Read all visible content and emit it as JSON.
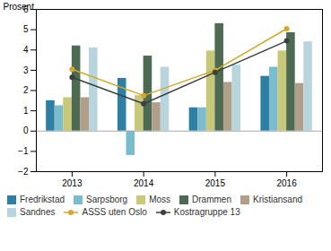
{
  "chart_data": {
    "type": "bar",
    "categories": [
      "2013",
      "2014",
      "2015",
      "2016"
    ],
    "series": [
      {
        "name": "Fredrikstad",
        "type": "bar",
        "color": "#2e7fa3",
        "values": [
          1.5,
          2.6,
          1.15,
          2.7
        ]
      },
      {
        "name": "Sarpsborg",
        "type": "bar",
        "color": "#7bbccc",
        "values": [
          1.25,
          -1.2,
          1.15,
          3.15
        ]
      },
      {
        "name": "Moss",
        "type": "bar",
        "color": "#c8c87a",
        "values": [
          1.65,
          1.75,
          3.95,
          3.95
        ]
      },
      {
        "name": "Drammen",
        "type": "bar",
        "color": "#4d6b52",
        "values": [
          4.2,
          3.7,
          5.3,
          4.85
        ]
      },
      {
        "name": "Kristiansand",
        "type": "bar",
        "color": "#b0a08a",
        "values": [
          1.65,
          1.4,
          2.4,
          2.35
        ]
      },
      {
        "name": "Sandnes",
        "type": "bar",
        "color": "#b8d4dd",
        "values": [
          4.1,
          3.15,
          3.25,
          4.4
        ]
      },
      {
        "name": "ASSS uten Oslo",
        "type": "line",
        "color": "#d4a82a",
        "marker": "circle",
        "values": [
          3.05,
          1.75,
          3.0,
          5.05
        ]
      },
      {
        "name": "Kostragruppe 13",
        "type": "line",
        "color": "#3a4040",
        "marker": "circle",
        "values": [
          2.65,
          1.35,
          2.9,
          4.45
        ]
      }
    ],
    "ylabel": "Prosent",
    "ylim": [
      -2,
      6
    ],
    "yticks": [
      -2,
      -1,
      0,
      1,
      2,
      3,
      4,
      5,
      6
    ],
    "grid": false,
    "legend": "bottom"
  }
}
